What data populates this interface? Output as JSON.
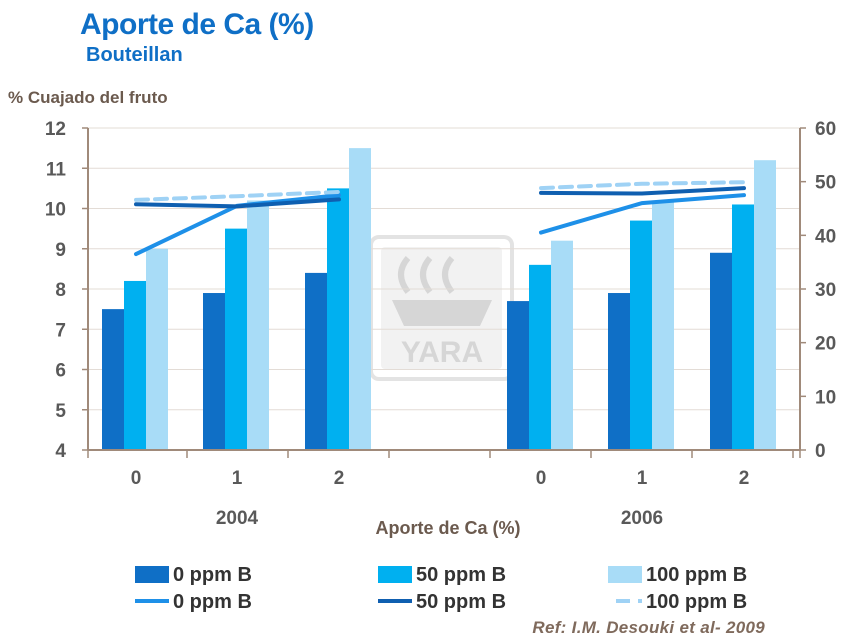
{
  "header": {
    "title": "Aporte de Ca (%)",
    "subtitle": "Bouteillan"
  },
  "reference": "Ref: I.M. Desouki et al- 2009",
  "watermark": "YARA",
  "colors": {
    "dark": "#0f6fc6",
    "mid": "#00b0f0",
    "light": "#a8dcf7",
    "line0": "#1e90e8",
    "line50": "#0f5fb0",
    "line100": "#9fd2f5",
    "axis": "#a08a7a"
  },
  "chart_data": {
    "type": "bar",
    "title": "Aporte de Ca (%)",
    "subtitle": "Bouteillan",
    "ylabel": "% Cuajado del fruto",
    "xlabel": "Aporte de Ca (%)",
    "ylim": [
      4,
      12
    ],
    "y_ticks": [
      4,
      5,
      6,
      7,
      8,
      9,
      10,
      11,
      12
    ],
    "y2lim": [
      0,
      60
    ],
    "y2_ticks": [
      0,
      10,
      20,
      30,
      40,
      50,
      60
    ],
    "categories": [
      "0",
      "1",
      "2",
      "0",
      "1",
      "2"
    ],
    "groups": [
      "2004",
      "2006"
    ],
    "grid": true,
    "legend_position": "bottom",
    "series": [
      {
        "name": "0 ppm B",
        "kind": "bar",
        "axis": "left",
        "values": [
          7.5,
          7.9,
          8.4,
          7.7,
          7.9,
          8.9
        ]
      },
      {
        "name": "50 ppm B",
        "kind": "bar",
        "axis": "left",
        "values": [
          8.2,
          9.5,
          10.5,
          8.6,
          9.7,
          10.1
        ]
      },
      {
        "name": "100 ppm B",
        "kind": "bar",
        "axis": "left",
        "values": [
          9.0,
          10.2,
          11.5,
          9.2,
          10.2,
          11.2
        ]
      },
      {
        "name": "0 ppm B",
        "kind": "line",
        "style": "solid",
        "axis": "right",
        "values": [
          36.5,
          45.5,
          47.5,
          40.5,
          46,
          47.5
        ]
      },
      {
        "name": "50 ppm B",
        "kind": "line",
        "style": "solid",
        "axis": "right",
        "values": [
          45.8,
          45.4,
          46.7,
          47.9,
          47.8,
          48.8
        ]
      },
      {
        "name": "100 ppm B",
        "kind": "line",
        "style": "dashed",
        "axis": "right",
        "values": [
          46.6,
          47.3,
          48.1,
          48.8,
          49.6,
          49.9
        ]
      }
    ]
  }
}
